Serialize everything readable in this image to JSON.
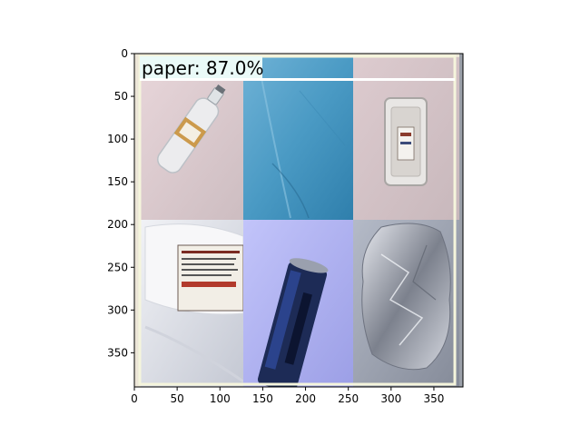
{
  "figure": {
    "x_axis": {
      "range": [
        0,
        384
      ],
      "ticks": [
        0,
        50,
        100,
        150,
        200,
        250,
        300,
        350
      ]
    },
    "y_axis": {
      "range": [
        0,
        390
      ],
      "inverted": true,
      "ticks": [
        0,
        50,
        100,
        150,
        200,
        250,
        300,
        350
      ]
    }
  },
  "image": {
    "description_tiles": [
      {
        "name": "plastic-bottle-tile",
        "colors": [
          "#e4d0d4",
          "#cfc0c4"
        ]
      },
      {
        "name": "blue-paper-tile",
        "colors": [
          "#5aa3cb",
          "#3f8fb8"
        ]
      },
      {
        "name": "plastic-tray-tile",
        "colors": [
          "#dac8cc",
          "#cbbcbf"
        ]
      },
      {
        "name": "milk-jug-tile",
        "colors": [
          "#e8eaf0",
          "#c9ccd6"
        ]
      },
      {
        "name": "soda-can-tile",
        "colors": [
          "#b7b9f5",
          "#9ea1ea"
        ]
      },
      {
        "name": "aluminum-foil-tile",
        "colors": [
          "#a8aebc",
          "#8d93a1"
        ]
      }
    ]
  },
  "detection": {
    "label": "paper: 87.0%",
    "box_color": "#f5f5dc",
    "label_bg": "#eafaf8"
  }
}
